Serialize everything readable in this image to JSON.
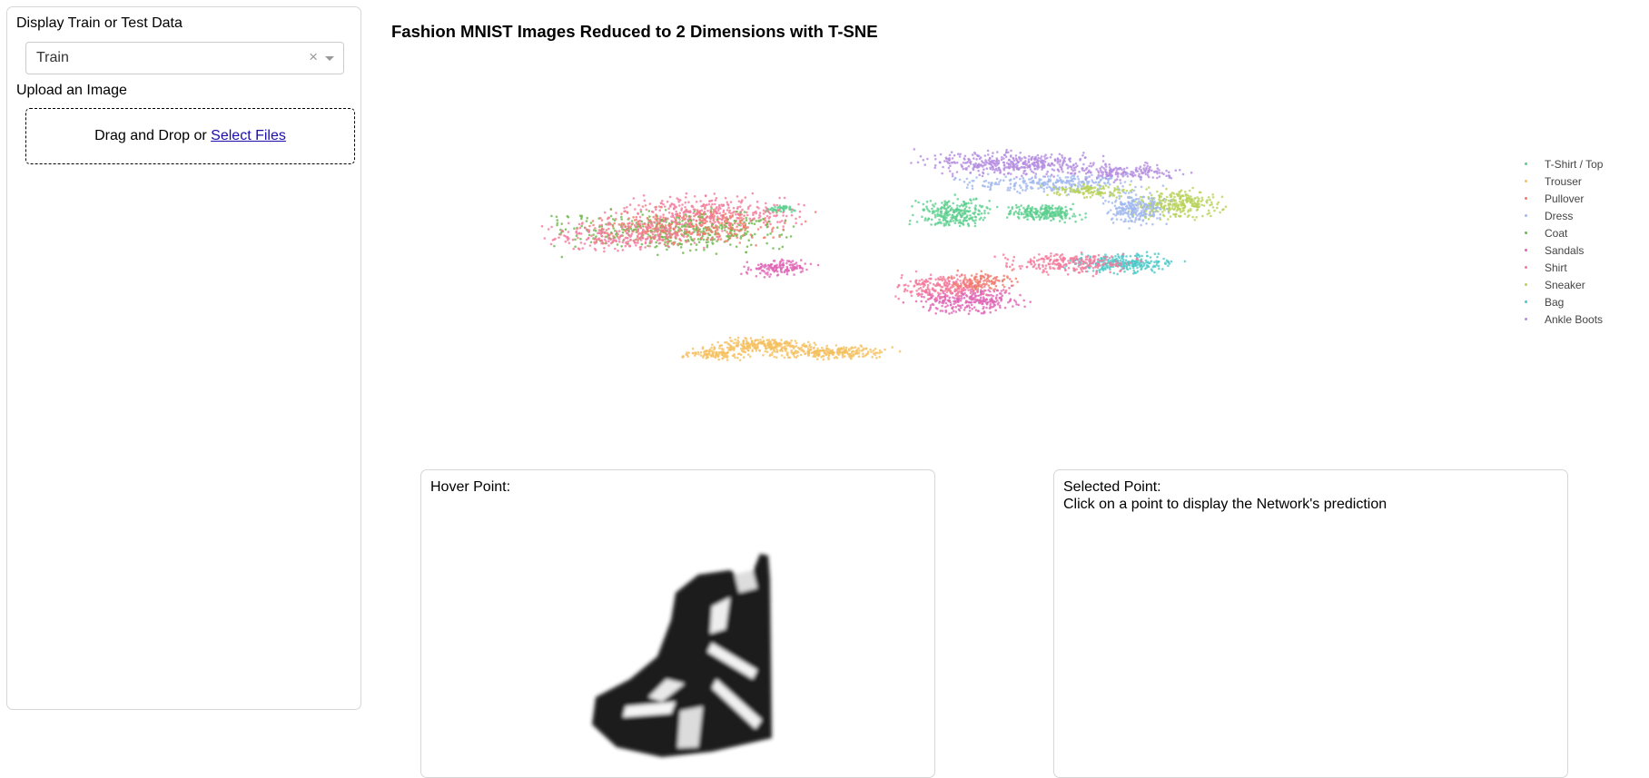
{
  "sidebar": {
    "display_label": "Display Train or Test Data",
    "select_value": "Train",
    "select_clear": "×",
    "upload_label": "Upload an Image",
    "upload_text": "Drag and Drop or ",
    "upload_link": "Select Files"
  },
  "title": "Fashion MNIST Images Reduced to 2 Dimensions with T-SNE",
  "chart_data": {
    "type": "scatter",
    "title": "Fashion MNIST Images Reduced to 2 Dimensions with T-SNE",
    "xlabel": "",
    "ylabel": "",
    "grid": false,
    "axes_visible": false,
    "legend_position": "right",
    "series": [
      {
        "name": "T-Shirt / Top",
        "color": "#5ccf8f"
      },
      {
        "name": "Trouser",
        "color": "#f5c060"
      },
      {
        "name": "Pullover",
        "color": "#f07a6c"
      },
      {
        "name": "Dress",
        "color": "#a0b8ef"
      },
      {
        "name": "Coat",
        "color": "#6db84a"
      },
      {
        "name": "Sandals",
        "color": "#e066b5"
      },
      {
        "name": "Shirt",
        "color": "#f47a9c"
      },
      {
        "name": "Sneaker",
        "color": "#b8d25a"
      },
      {
        "name": "Bag",
        "color": "#4cc9c9"
      },
      {
        "name": "Ankle Boots",
        "color": "#b48ce0"
      }
    ]
  },
  "hover_panel": {
    "title": "Hover Point:",
    "image": "ankle-boot-image"
  },
  "selected_panel": {
    "title": "Selected Point:",
    "subtitle": "Click on a point to display the Network's prediction"
  }
}
